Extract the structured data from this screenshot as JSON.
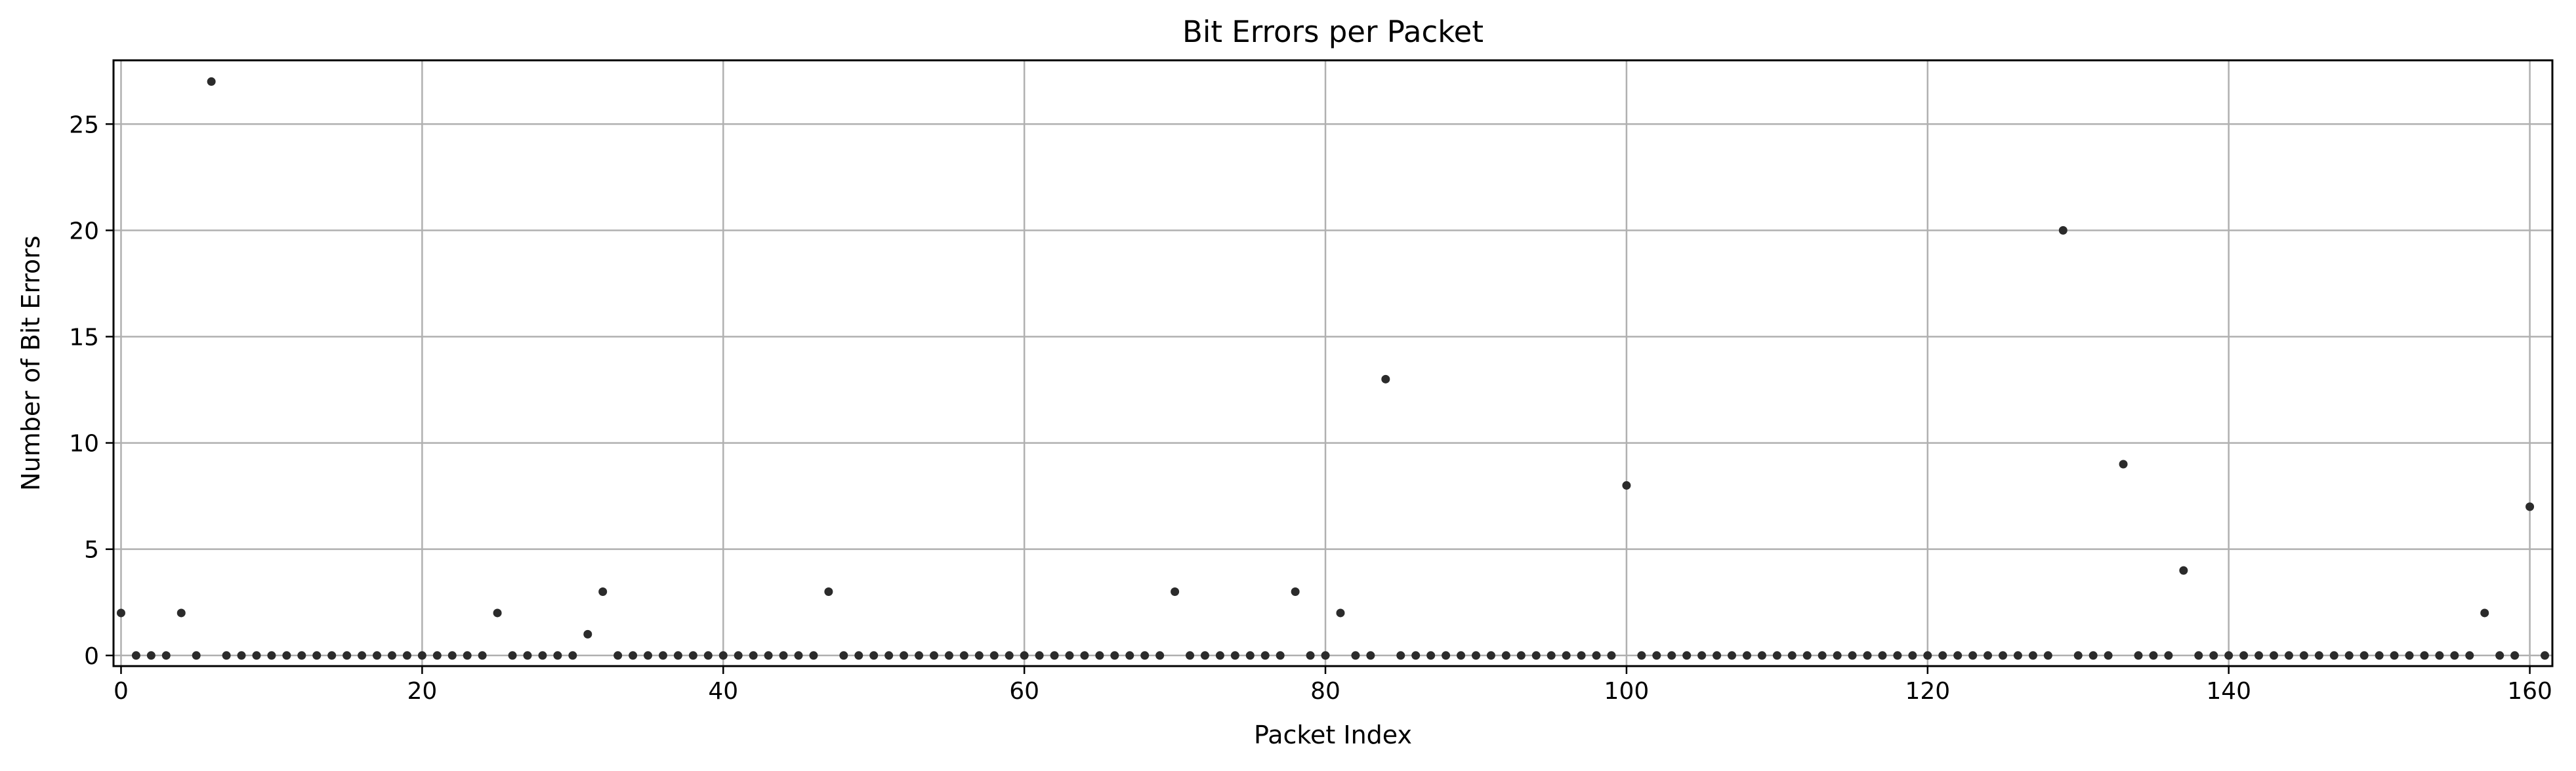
{
  "chart_data": {
    "type": "scatter",
    "title": "Bit Errors per Packet",
    "xlabel": "Packet Index",
    "ylabel": "Number of Bit Errors",
    "xlim": [
      -0.5,
      161.5
    ],
    "ylim": [
      -0.5,
      28
    ],
    "xticks": [
      0,
      20,
      40,
      60,
      80,
      100,
      120,
      140,
      160
    ],
    "yticks": [
      0,
      5,
      10,
      15,
      20,
      25
    ],
    "grid": true,
    "marker_color": "#2b2b2b",
    "nonzero_points": {
      "0": 2,
      "4": 2,
      "6": 27,
      "25": 2,
      "31": 1,
      "32": 3,
      "47": 3,
      "70": 3,
      "78": 3,
      "81": 2,
      "84": 13,
      "100": 8,
      "129": 20,
      "133": 9,
      "137": 4,
      "157": 2,
      "160": 7
    },
    "x": [
      0,
      1,
      2,
      3,
      4,
      5,
      6,
      7,
      8,
      9,
      10,
      11,
      12,
      13,
      14,
      15,
      16,
      17,
      18,
      19,
      20,
      21,
      22,
      23,
      24,
      25,
      26,
      27,
      28,
      29,
      30,
      31,
      32,
      33,
      34,
      35,
      36,
      37,
      38,
      39,
      40,
      41,
      42,
      43,
      44,
      45,
      46,
      47,
      48,
      49,
      50,
      51,
      52,
      53,
      54,
      55,
      56,
      57,
      58,
      59,
      60,
      61,
      62,
      63,
      64,
      65,
      66,
      67,
      68,
      69,
      70,
      71,
      72,
      73,
      74,
      75,
      76,
      77,
      78,
      79,
      80,
      81,
      82,
      83,
      84,
      85,
      86,
      87,
      88,
      89,
      90,
      91,
      92,
      93,
      94,
      95,
      96,
      97,
      98,
      99,
      100,
      101,
      102,
      103,
      104,
      105,
      106,
      107,
      108,
      109,
      110,
      111,
      112,
      113,
      114,
      115,
      116,
      117,
      118,
      119,
      120,
      121,
      122,
      123,
      124,
      125,
      126,
      127,
      128,
      129,
      130,
      131,
      132,
      133,
      134,
      135,
      136,
      137,
      138,
      139,
      140,
      141,
      142,
      143,
      144,
      145,
      146,
      147,
      148,
      149,
      150,
      151,
      152,
      153,
      154,
      155,
      156,
      157,
      158,
      159,
      160,
      161
    ]
  }
}
